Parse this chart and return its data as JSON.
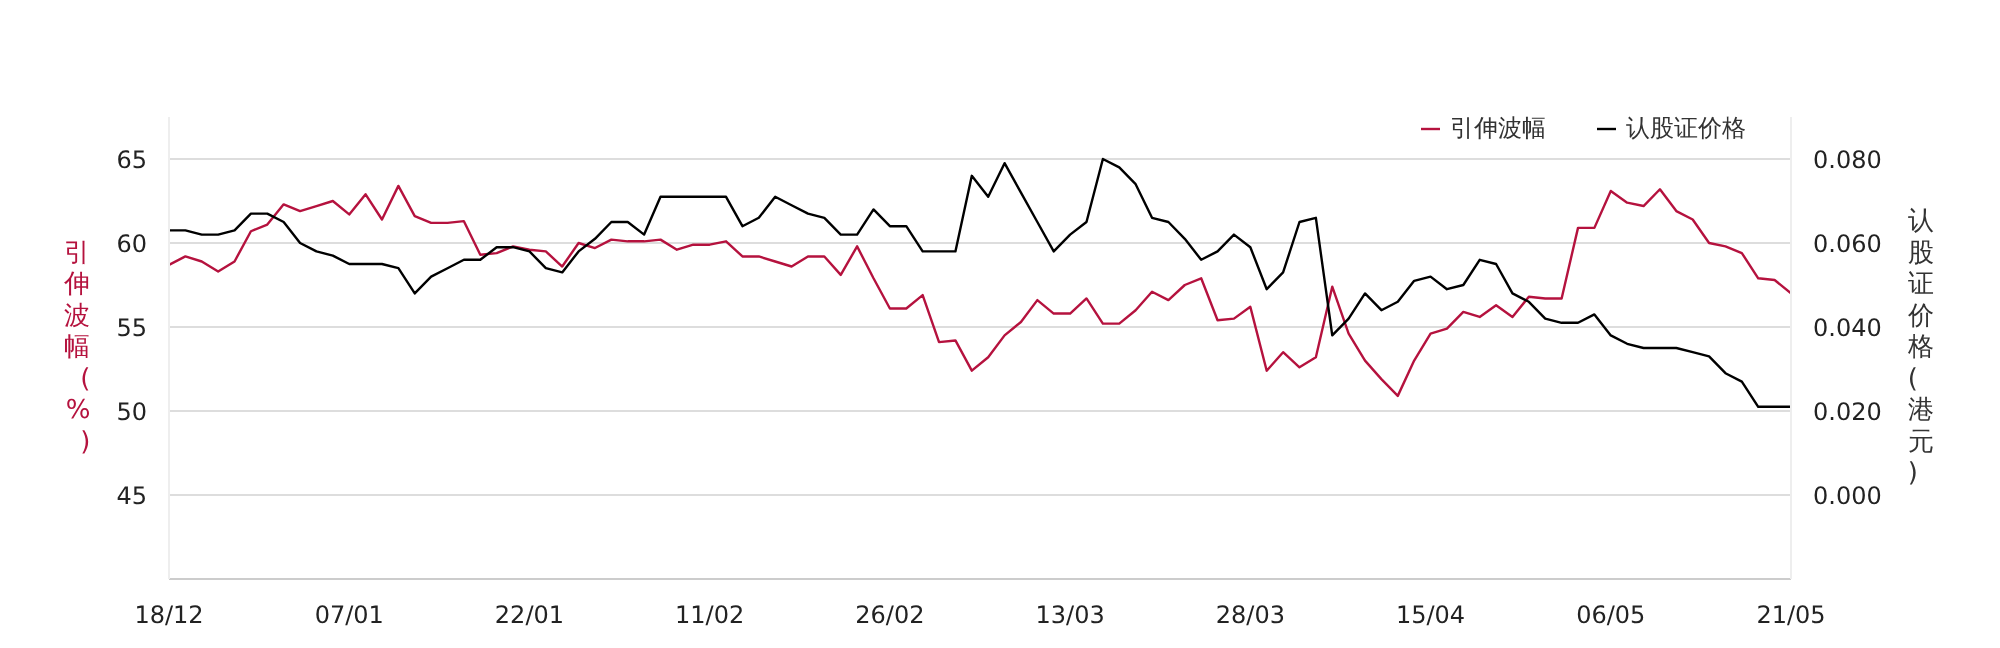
{
  "chart_data": {
    "type": "line",
    "categories": [
      "18/12",
      null,
      null,
      null,
      null,
      null,
      null,
      null,
      null,
      null,
      null,
      "07/01",
      null,
      null,
      null,
      null,
      null,
      null,
      null,
      null,
      null,
      null,
      "22/01",
      null,
      null,
      null,
      null,
      null,
      null,
      null,
      null,
      null,
      null,
      "11/02",
      null,
      null,
      null,
      null,
      null,
      null,
      null,
      null,
      null,
      null,
      "26/02",
      null,
      null,
      null,
      null,
      null,
      null,
      null,
      null,
      null,
      null,
      "13/03",
      null,
      null,
      null,
      null,
      null,
      null,
      null,
      null,
      null,
      null,
      "28/03",
      null,
      null,
      null,
      null,
      null,
      null,
      null,
      null,
      null,
      null,
      "15/04",
      null,
      null,
      null,
      null,
      null,
      null,
      null,
      null,
      null,
      null,
      "06/05",
      null,
      null,
      null,
      null,
      null,
      null,
      null,
      null,
      null,
      null,
      "21/05"
    ],
    "ylabel": "引伸波幅(%)",
    "y2label": "认股证价格(港元)",
    "ylim": [
      40,
      67.5
    ],
    "yticks": [
      45,
      50,
      55,
      60,
      65
    ],
    "y2lim": [
      -0.02,
      0.09
    ],
    "y2ticks": [
      {
        "value": 0,
        "label": "0.000"
      },
      {
        "value": 0.02,
        "label": "0.020"
      },
      {
        "value": 0.04,
        "label": "0.040"
      },
      {
        "value": 0.06,
        "label": "0.060"
      },
      {
        "value": 0.08,
        "label": "0.080"
      }
    ],
    "grid": "y",
    "legend": "top right",
    "series": [
      {
        "name": "引伸波幅",
        "color": "#b5123e",
        "values": [
          58.7,
          59.2,
          58.9,
          58.3,
          58.9,
          60.7,
          61.1,
          62.3,
          61.9,
          62.2,
          62.5,
          61.7,
          62.9,
          61.4,
          63.4,
          61.6,
          61.2,
          61.2,
          61.3,
          59.3,
          59.4,
          59.8,
          59.6,
          59.5,
          58.6,
          60.0,
          59.7,
          60.2,
          60.1,
          60.1,
          60.2,
          59.6,
          59.9,
          59.9,
          60.1,
          59.2,
          59.2,
          58.9,
          58.6,
          59.2,
          59.2,
          58.1,
          59.8,
          57.9,
          56.1,
          56.1,
          56.9,
          54.1,
          54.2,
          52.4,
          53.2,
          54.5,
          55.3,
          56.6,
          55.8,
          55.8,
          56.7,
          55.2,
          55.2,
          56.0,
          57.1,
          56.6,
          57.5,
          57.9,
          55.4,
          55.5,
          56.2,
          52.4,
          53.5,
          52.6,
          53.2,
          57.4,
          54.6,
          53.0,
          51.9,
          50.9,
          53.0,
          54.6,
          54.9,
          55.9,
          55.6,
          56.3,
          55.6,
          56.8,
          56.7,
          56.7,
          60.9,
          60.9,
          63.1,
          62.4,
          62.2,
          63.2,
          61.9,
          61.4,
          60.0,
          59.8,
          59.4,
          57.9,
          57.8,
          57.0
        ]
      },
      {
        "name": "认股证价格",
        "color": "#000000",
        "axis": "y2",
        "values": [
          0.063,
          0.063,
          0.062,
          0.062,
          0.063,
          0.067,
          0.067,
          0.065,
          0.06,
          0.058,
          0.057,
          0.055,
          0.055,
          0.055,
          0.054,
          0.048,
          0.052,
          0.054,
          0.056,
          0.056,
          0.059,
          0.059,
          0.058,
          0.054,
          0.053,
          0.058,
          0.061,
          0.065,
          0.065,
          0.062,
          0.071,
          0.071,
          0.071,
          0.071,
          0.071,
          0.064,
          0.066,
          0.071,
          0.069,
          0.067,
          0.066,
          0.062,
          0.062,
          0.068,
          0.064,
          0.064,
          0.058,
          0.058,
          0.058,
          0.076,
          0.071,
          0.079,
          0.072,
          0.065,
          0.058,
          0.062,
          0.065,
          0.08,
          0.078,
          0.074,
          0.066,
          0.065,
          0.061,
          0.056,
          0.058,
          0.062,
          0.059,
          0.049,
          0.053,
          0.065,
          0.066,
          0.038,
          0.042,
          0.048,
          0.044,
          0.046,
          0.051,
          0.052,
          0.049,
          0.05,
          0.056,
          0.055,
          0.048,
          0.046,
          0.042,
          0.041,
          0.041,
          0.043,
          0.038,
          0.036,
          0.035,
          0.035,
          0.035,
          0.034,
          0.033,
          0.029,
          0.027,
          0.021,
          0.021,
          0.021
        ]
      }
    ]
  }
}
